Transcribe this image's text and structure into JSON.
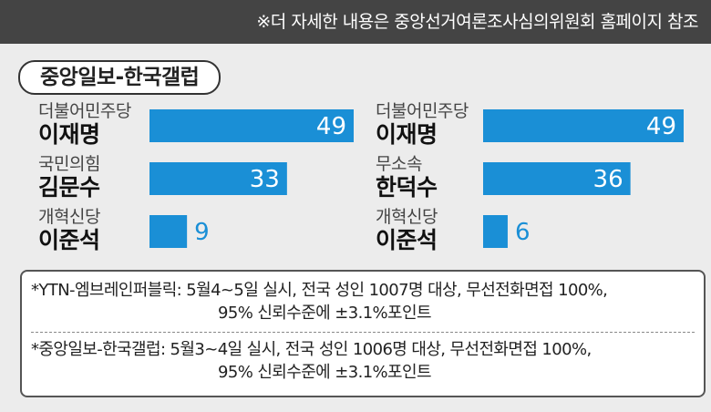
{
  "header": {
    "text": "※더 자세한 내용은 중앙선거여론조사심의위원회 홈페이지 참조"
  },
  "source_badge": {
    "label": "중앙일보-한국갤럽"
  },
  "colors": {
    "bar": "#1a8fd6",
    "topbar": "#444444",
    "background": "#ececec"
  },
  "chart_data": [
    {
      "type": "bar",
      "orientation": "horizontal",
      "categories": [
        "더불어민주당 이재명",
        "국민의힘 김문수",
        "개혁신당 이준석"
      ],
      "parties": [
        "더불어민주당",
        "국민의힘",
        "개혁신당"
      ],
      "candidates": [
        "이재명",
        "김문수",
        "이준석"
      ],
      "values": [
        49,
        33,
        9
      ],
      "xlim": [
        0,
        49
      ]
    },
    {
      "type": "bar",
      "orientation": "horizontal",
      "categories": [
        "더불어민주당 이재명",
        "무소속 한덕수",
        "개혁신당 이준석"
      ],
      "parties": [
        "더불어민주당",
        "무소속",
        "개혁신당"
      ],
      "candidates": [
        "이재명",
        "한덕수",
        "이준석"
      ],
      "values": [
        49,
        36,
        6
      ],
      "xlim": [
        0,
        49
      ]
    }
  ],
  "notes": [
    {
      "line1": "*YTN-엠브레인퍼블릭: 5월4~5일 실시, 전국 성인 1007명 대상, 무선전화면접 100%,",
      "line2": "95% 신뢰수준에 ±3.1%포인트"
    },
    {
      "line1": "*중앙일보-한국갤럽: 5월3~4일 실시, 전국 성인 1006명 대상, 무선전화면접 100%,",
      "line2": "95% 신뢰수준에 ±3.1%포인트"
    }
  ]
}
